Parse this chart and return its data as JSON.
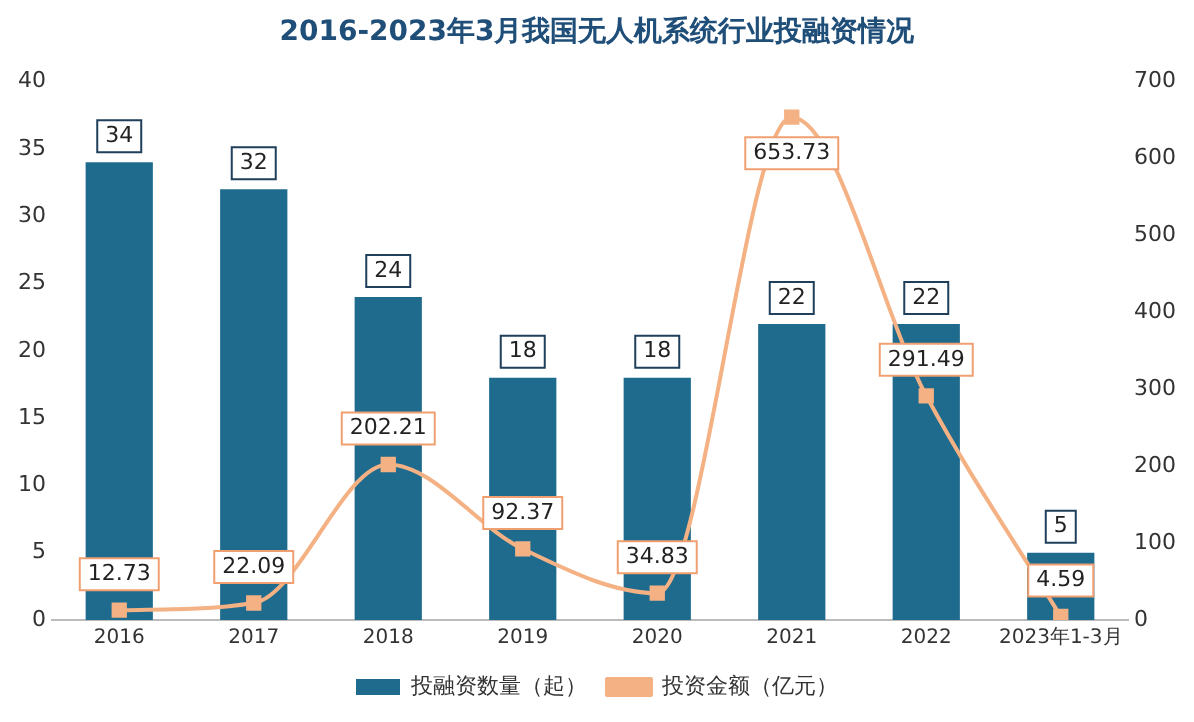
{
  "chart_data": {
    "type": "bar",
    "title": "2016-2023年3月我国无人机系统行业投融资情况",
    "categories": [
      "2016",
      "2017",
      "2018",
      "2019",
      "2020",
      "2021",
      "2022",
      "2023年1-3月"
    ],
    "series": [
      {
        "name": "投融资数量（起）",
        "color": "#1f6b8e",
        "values": [
          34,
          32,
          24,
          18,
          18,
          22,
          22,
          5
        ]
      },
      {
        "name": "投资金额（亿元）",
        "type": "line",
        "axis": "y2",
        "color": "#f4b183",
        "values": [
          12.73,
          22.09,
          202.21,
          92.37,
          34.83,
          653.73,
          291.49,
          4.59
        ]
      }
    ],
    "ylim": [
      0,
      40
    ],
    "yticks": [
      0,
      5,
      10,
      15,
      20,
      25,
      30,
      35,
      40
    ],
    "y2lim": [
      0,
      700
    ],
    "y2ticks": [
      0,
      100,
      200,
      300,
      400,
      500,
      600,
      700
    ],
    "grid": false,
    "legend": "bottom",
    "marker": "square",
    "line_style": "solid",
    "data_labels": true
  }
}
